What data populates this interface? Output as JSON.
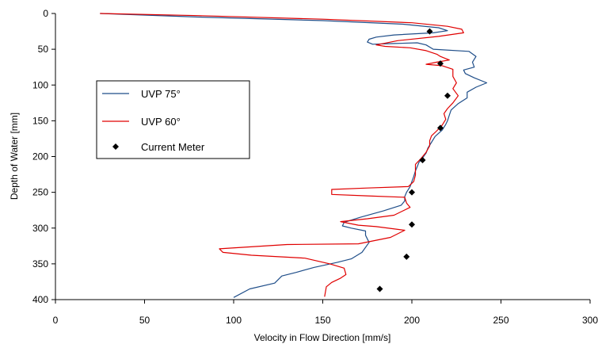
{
  "chart_data": {
    "type": "line",
    "xlabel": "Velocity in Flow Direction [mm/s]",
    "ylabel": "Depth of Water [mm]",
    "xlim": [
      0,
      300
    ],
    "ylim": [
      400,
      0
    ],
    "x_ticks": [
      0,
      50,
      100,
      150,
      200,
      250,
      300
    ],
    "y_ticks": [
      0,
      50,
      100,
      150,
      200,
      250,
      300,
      350,
      400
    ],
    "y_axis_inverted": true,
    "grid": false,
    "legend_placement": "left-middle",
    "series": [
      {
        "name": "UVP 75°",
        "kind": "line",
        "color": "#1f4e89",
        "points": [
          [
            25,
            0
          ],
          [
            80,
            5
          ],
          [
            150,
            10
          ],
          [
            195,
            15
          ],
          [
            215,
            20
          ],
          [
            220,
            24
          ],
          [
            212,
            27
          ],
          [
            190,
            30
          ],
          [
            180,
            33
          ],
          [
            176,
            36
          ],
          [
            175,
            40
          ],
          [
            178,
            43
          ],
          [
            190,
            42
          ],
          [
            203,
            41
          ],
          [
            208,
            44
          ],
          [
            212,
            50
          ],
          [
            232,
            53
          ],
          [
            236,
            60
          ],
          [
            234,
            68
          ],
          [
            235,
            75
          ],
          [
            229,
            79
          ],
          [
            230,
            84
          ],
          [
            235,
            90
          ],
          [
            242,
            97
          ],
          [
            236,
            103
          ],
          [
            231,
            110
          ],
          [
            231,
            118
          ],
          [
            226,
            126
          ],
          [
            222,
            135
          ],
          [
            221,
            142
          ],
          [
            220,
            150
          ],
          [
            219,
            155
          ],
          [
            217,
            163
          ],
          [
            213,
            172
          ],
          [
            211,
            180
          ],
          [
            209,
            188
          ],
          [
            208,
            195
          ],
          [
            206,
            202
          ],
          [
            204,
            208
          ],
          [
            203,
            214
          ],
          [
            202,
            220
          ],
          [
            201,
            228
          ],
          [
            200,
            235
          ],
          [
            199,
            242
          ],
          [
            197,
            250
          ],
          [
            196,
            256
          ],
          [
            196,
            262
          ],
          [
            194,
            268
          ],
          [
            184,
            276
          ],
          [
            171,
            285
          ],
          [
            162,
            292
          ],
          [
            161,
            297
          ],
          [
            166,
            300
          ],
          [
            174,
            304
          ],
          [
            174,
            310
          ],
          [
            176,
            320
          ],
          [
            172,
            334
          ],
          [
            166,
            343
          ],
          [
            158,
            348
          ],
          [
            145,
            355
          ],
          [
            135,
            362
          ],
          [
            127,
            367
          ],
          [
            123,
            377
          ],
          [
            109,
            385
          ],
          [
            100,
            397
          ]
        ]
      },
      {
        "name": "UVP 60°",
        "kind": "line",
        "color": "#e00000",
        "points": [
          [
            25,
            0
          ],
          [
            80,
            3
          ],
          [
            150,
            8
          ],
          [
            200,
            13
          ],
          [
            220,
            18
          ],
          [
            228,
            22
          ],
          [
            229,
            27
          ],
          [
            215,
            32
          ],
          [
            192,
            38
          ],
          [
            180,
            44
          ],
          [
            185,
            46
          ],
          [
            199,
            48
          ],
          [
            208,
            52
          ],
          [
            214,
            57
          ],
          [
            216,
            60
          ],
          [
            219,
            63
          ],
          [
            221,
            65
          ],
          [
            214,
            68
          ],
          [
            208,
            71
          ],
          [
            217,
            73
          ],
          [
            223,
            78
          ],
          [
            223,
            88
          ],
          [
            225,
            97
          ],
          [
            223,
            105
          ],
          [
            226,
            115
          ],
          [
            223,
            125
          ],
          [
            220,
            133
          ],
          [
            218,
            140
          ],
          [
            219,
            148
          ],
          [
            217,
            156
          ],
          [
            214,
            164
          ],
          [
            211,
            171
          ],
          [
            210,
            178
          ],
          [
            210,
            185
          ],
          [
            208,
            194
          ],
          [
            205,
            203
          ],
          [
            202,
            211
          ],
          [
            202,
            218
          ],
          [
            202,
            226
          ],
          [
            201,
            235
          ],
          [
            198,
            242
          ],
          [
            175,
            244
          ],
          [
            155,
            246
          ],
          [
            155,
            253
          ],
          [
            175,
            255
          ],
          [
            196,
            257
          ],
          [
            197,
            265
          ],
          [
            199,
            271
          ],
          [
            190,
            282
          ],
          [
            175,
            287
          ],
          [
            160,
            291
          ],
          [
            170,
            296
          ],
          [
            180,
            298
          ],
          [
            196,
            303
          ],
          [
            188,
            313
          ],
          [
            170,
            322
          ],
          [
            130,
            323
          ],
          [
            92,
            329
          ],
          [
            94,
            334
          ],
          [
            110,
            338
          ],
          [
            140,
            342
          ],
          [
            154,
            350
          ],
          [
            162,
            356
          ],
          [
            163,
            365
          ],
          [
            160,
            370
          ],
          [
            155,
            376
          ],
          [
            152,
            382
          ],
          [
            151,
            396
          ]
        ]
      },
      {
        "name": "Current Meter",
        "kind": "markers",
        "color": "#000000",
        "points": [
          [
            210,
            25
          ],
          [
            216,
            70
          ],
          [
            220,
            115
          ],
          [
            216,
            160
          ],
          [
            206,
            205
          ],
          [
            200,
            250
          ],
          [
            200,
            295
          ],
          [
            197,
            340
          ],
          [
            182,
            385
          ]
        ]
      }
    ]
  }
}
